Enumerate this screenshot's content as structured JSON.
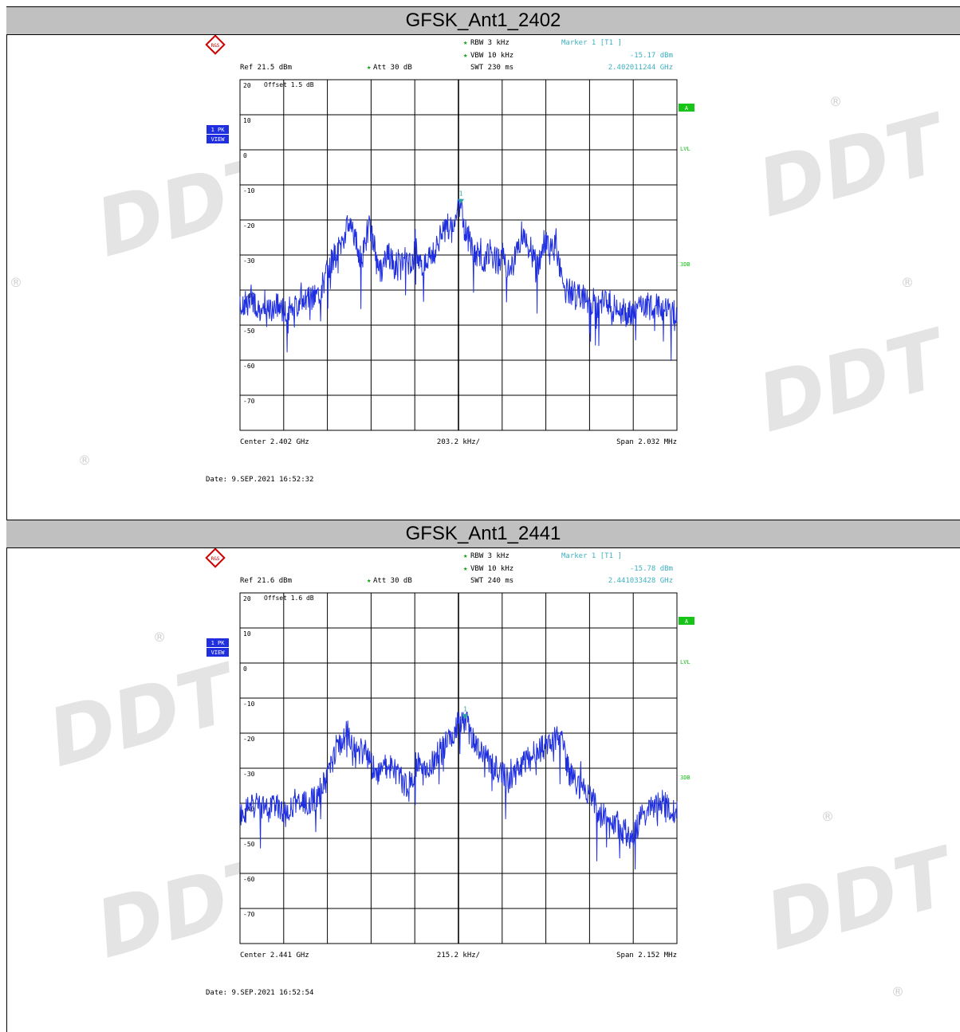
{
  "chart_data": [
    {
      "type": "line",
      "title": "GFSK_Ant1_2402",
      "rbw": "RBW 3 kHz",
      "vbw": "VBW 10 kHz",
      "swt": "SWT 230 ms",
      "att": "Att 30 dB",
      "ref": "Ref 21.5 dBm",
      "offset": "Offset 1.5 dB",
      "marker_label": "Marker 1 [T1 ]",
      "marker_level": "-15.17 dBm",
      "marker_freq": "2.402011244 GHz",
      "center": "Center 2.402 GHz",
      "div": "203.2 kHz/",
      "span": "Span 2.032 MHz",
      "date": "Date: 9.SEP.2021 16:52:32",
      "trace_label_1": "1 PK",
      "trace_label_2": "VIEW",
      "side_a": "A",
      "side_lvl": "LVL",
      "side_3db": "3DB",
      "ylim": [
        -80,
        20
      ],
      "xlim": [
        -1.016,
        1.016
      ],
      "xlabel_unit": "MHz offset",
      "yticks": [
        "20",
        "10",
        "0",
        "-10",
        "-20",
        "-30",
        "-40",
        "-50",
        "-60",
        "-70"
      ],
      "marker": {
        "x": 0.011244,
        "y": -15.17,
        "label": "1"
      },
      "series": [
        {
          "color": "#1f2fe0",
          "x": [
            -1.016,
            -0.95,
            -0.9,
            -0.85,
            -0.8,
            -0.75,
            -0.7,
            -0.65,
            -0.6,
            -0.55,
            -0.5,
            -0.45,
            -0.42,
            -0.4,
            -0.36,
            -0.33,
            -0.3,
            -0.27,
            -0.25,
            -0.22,
            -0.2,
            -0.17,
            -0.14,
            -0.11,
            -0.08,
            -0.05,
            -0.02,
            0.0,
            0.011,
            0.03,
            0.06,
            0.09,
            0.12,
            0.15,
            0.18,
            0.21,
            0.24,
            0.27,
            0.3,
            0.33,
            0.36,
            0.4,
            0.45,
            0.5,
            0.55,
            0.6,
            0.65,
            0.7,
            0.75,
            0.8,
            0.85,
            0.9,
            0.95,
            1.016
          ],
          "values": [
            -45,
            -43,
            -47,
            -44,
            -46,
            -44,
            -43,
            -41,
            -33,
            -27,
            -20,
            -32,
            -22,
            -25,
            -35,
            -29,
            -33,
            -31,
            -31,
            -34,
            -28,
            -35,
            -30,
            -29,
            -24,
            -22,
            -23,
            -17,
            -15,
            -22,
            -28,
            -30,
            -31,
            -29,
            -32,
            -30,
            -36,
            -28,
            -24,
            -27,
            -35,
            -26,
            -28,
            -40,
            -41,
            -43,
            -45,
            -43,
            -46,
            -47,
            -44,
            -44,
            -45,
            -47
          ]
        }
      ]
    },
    {
      "type": "line",
      "title": "GFSK_Ant1_2441",
      "rbw": "RBW 3 kHz",
      "vbw": "VBW 10 kHz",
      "swt": "SWT 240 ms",
      "att": "Att 30 dB",
      "ref": "Ref 21.6 dBm",
      "offset": "Offset 1.6 dB",
      "marker_label": "Marker 1 [T1 ]",
      "marker_level": "-15.78 dBm",
      "marker_freq": "2.441033428 GHz",
      "center": "Center 2.441 GHz",
      "div": "215.2 kHz/",
      "span": "Span 2.152 MHz",
      "date": "Date: 9.SEP.2021 16:52:54",
      "trace_label_1": "1 PK",
      "trace_label_2": "VIEW",
      "side_a": "A",
      "side_lvl": "LVL",
      "side_3db": "3DB",
      "ylim": [
        -80,
        20
      ],
      "xlim": [
        -1.076,
        1.076
      ],
      "xlabel_unit": "MHz offset",
      "yticks": [
        "20",
        "10",
        "0",
        "-10",
        "-20",
        "-30",
        "-40",
        "-50",
        "-60",
        "-70"
      ],
      "marker": {
        "x": 0.033428,
        "y": -15.78,
        "label": "1"
      },
      "series": [
        {
          "color": "#1f2fe0",
          "x": [
            -1.076,
            -1.0,
            -0.95,
            -0.9,
            -0.85,
            -0.8,
            -0.75,
            -0.7,
            -0.65,
            -0.6,
            -0.55,
            -0.5,
            -0.45,
            -0.4,
            -0.35,
            -0.3,
            -0.25,
            -0.2,
            -0.15,
            -0.1,
            -0.05,
            0.0,
            0.033,
            0.07,
            0.1,
            0.15,
            0.2,
            0.25,
            0.3,
            0.35,
            0.4,
            0.45,
            0.5,
            0.55,
            0.6,
            0.65,
            0.7,
            0.75,
            0.8,
            0.85,
            0.9,
            0.95,
            1.0,
            1.076
          ],
          "values": [
            -43,
            -40,
            -42,
            -41,
            -43,
            -41,
            -40,
            -38,
            -33,
            -24,
            -20,
            -24,
            -26,
            -33,
            -29,
            -32,
            -35,
            -28,
            -31,
            -26,
            -22,
            -18,
            -16,
            -22,
            -25,
            -28,
            -31,
            -34,
            -30,
            -27,
            -25,
            -23,
            -21,
            -32,
            -35,
            -38,
            -43,
            -44,
            -47,
            -50,
            -44,
            -42,
            -40,
            -43
          ]
        }
      ]
    }
  ]
}
